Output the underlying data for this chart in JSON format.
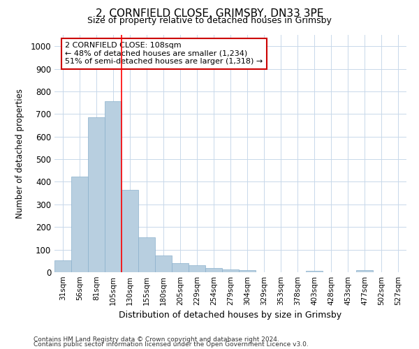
{
  "title": "2, CORNFIELD CLOSE, GRIMSBY, DN33 3PE",
  "subtitle": "Size of property relative to detached houses in Grimsby",
  "xlabel": "Distribution of detached houses by size in Grimsby",
  "ylabel": "Number of detached properties",
  "categories": [
    "31sqm",
    "56sqm",
    "81sqm",
    "105sqm",
    "130sqm",
    "155sqm",
    "180sqm",
    "205sqm",
    "229sqm",
    "254sqm",
    "279sqm",
    "304sqm",
    "329sqm",
    "353sqm",
    "378sqm",
    "403sqm",
    "428sqm",
    "453sqm",
    "477sqm",
    "502sqm",
    "527sqm"
  ],
  "values": [
    52,
    422,
    685,
    757,
    365,
    153,
    75,
    40,
    30,
    18,
    13,
    9,
    1,
    0,
    0,
    5,
    0,
    0,
    8,
    0,
    0
  ],
  "bar_color": "#b8cfe0",
  "bar_edge_color": "#8ab0cc",
  "grid_color": "#c8d8ea",
  "red_line_index": 3.5,
  "annotation_text": "2 CORNFIELD CLOSE: 108sqm\n← 48% of detached houses are smaller (1,234)\n51% of semi-detached houses are larger (1,318) →",
  "annotation_box_color": "#ffffff",
  "annotation_box_edge": "#cc0000",
  "ylim": [
    0,
    1050
  ],
  "yticks": [
    0,
    100,
    200,
    300,
    400,
    500,
    600,
    700,
    800,
    900,
    1000
  ],
  "footer1": "Contains HM Land Registry data © Crown copyright and database right 2024.",
  "footer2": "Contains public sector information licensed under the Open Government Licence v3.0.",
  "bg_color": "#ffffff",
  "title_fontsize": 11,
  "subtitle_fontsize": 9
}
